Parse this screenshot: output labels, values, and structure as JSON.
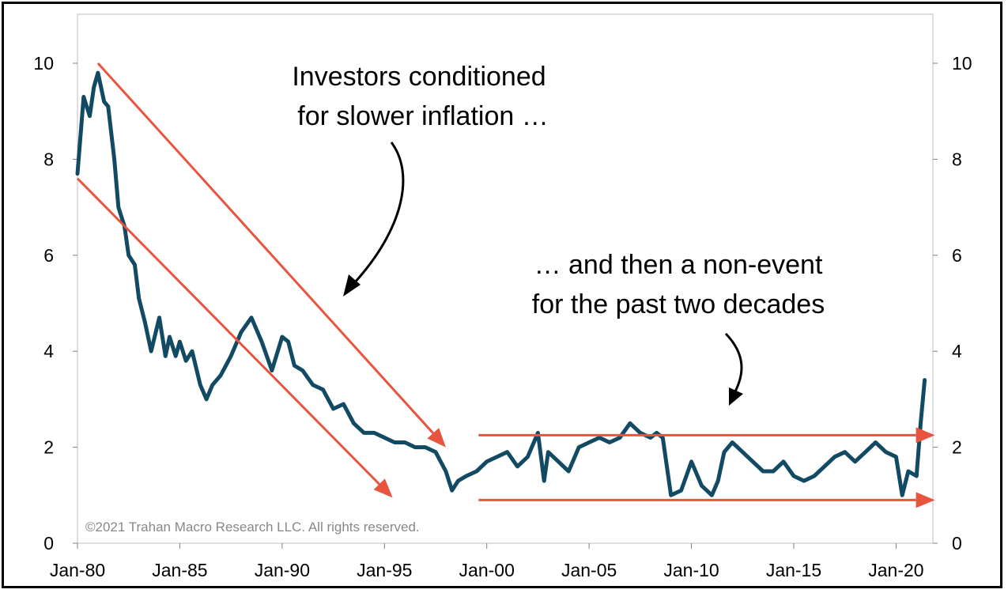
{
  "chart_data": {
    "type": "line",
    "title": "",
    "xlabel": "",
    "ylabel": "",
    "ylim": [
      0,
      10
    ],
    "y_ticks_left": [
      "0",
      "2",
      "4",
      "6",
      "8",
      "10"
    ],
    "y_ticks_right": [
      "0",
      "2",
      "4",
      "6",
      "8",
      "10"
    ],
    "x_ticks": [
      "Jan-80",
      "Jan-85",
      "Jan-90",
      "Jan-95",
      "Jan-00",
      "Jan-05",
      "Jan-10",
      "Jan-15",
      "Jan-20"
    ],
    "x_tick_years": [
      1980,
      1985,
      1990,
      1995,
      2000,
      2005,
      2010,
      2015,
      2020
    ],
    "xlim": [
      1980,
      2021.8
    ],
    "grid": false,
    "series": [
      {
        "color": "#124a63",
        "x": [
          1980.0,
          1980.3,
          1980.6,
          1980.8,
          1981.0,
          1981.3,
          1981.5,
          1981.8,
          1982.0,
          1982.3,
          1982.5,
          1982.8,
          1983.0,
          1983.3,
          1983.6,
          1984.0,
          1984.3,
          1984.5,
          1984.8,
          1985.0,
          1985.3,
          1985.6,
          1986.0,
          1986.3,
          1986.6,
          1987.0,
          1987.5,
          1988.0,
          1988.5,
          1989.0,
          1989.5,
          1990.0,
          1990.3,
          1990.6,
          1991.0,
          1991.5,
          1992.0,
          1992.5,
          1993.0,
          1993.5,
          1994.0,
          1994.5,
          1995.0,
          1995.5,
          1996.0,
          1996.5,
          1997.0,
          1997.5,
          1998.0,
          1998.3,
          1998.6,
          1999.0,
          1999.5,
          2000.0,
          2000.5,
          2001.0,
          2001.5,
          2002.0,
          2002.5,
          2002.8,
          2003.0,
          2003.5,
          2004.0,
          2004.5,
          2005.0,
          2005.5,
          2006.0,
          2006.5,
          2007.0,
          2007.5,
          2008.0,
          2008.3,
          2008.6,
          2009.0,
          2009.5,
          2010.0,
          2010.5,
          2011.0,
          2011.3,
          2011.6,
          2012.0,
          2012.5,
          2013.0,
          2013.5,
          2014.0,
          2014.5,
          2015.0,
          2015.5,
          2016.0,
          2016.5,
          2017.0,
          2017.5,
          2018.0,
          2018.5,
          2019.0,
          2019.5,
          2020.0,
          2020.3,
          2020.6,
          2021.0,
          2021.2,
          2021.4
        ],
        "values": [
          7.7,
          9.3,
          8.9,
          9.5,
          9.8,
          9.2,
          9.1,
          8.0,
          7.0,
          6.6,
          6.0,
          5.8,
          5.1,
          4.6,
          4.0,
          4.7,
          3.9,
          4.3,
          3.9,
          4.2,
          3.8,
          4.0,
          3.3,
          3.0,
          3.3,
          3.5,
          3.9,
          4.4,
          4.7,
          4.2,
          3.6,
          4.3,
          4.2,
          3.7,
          3.6,
          3.3,
          3.2,
          2.8,
          2.9,
          2.5,
          2.3,
          2.3,
          2.2,
          2.1,
          2.1,
          2.0,
          2.0,
          1.9,
          1.5,
          1.1,
          1.3,
          1.4,
          1.5,
          1.7,
          1.8,
          1.9,
          1.6,
          1.8,
          2.3,
          1.3,
          1.9,
          1.7,
          1.5,
          2.0,
          2.1,
          2.2,
          2.1,
          2.2,
          2.5,
          2.3,
          2.2,
          2.3,
          2.2,
          1.0,
          1.1,
          1.7,
          1.2,
          1.0,
          1.3,
          1.9,
          2.1,
          1.9,
          1.7,
          1.5,
          1.5,
          1.7,
          1.4,
          1.3,
          1.4,
          1.6,
          1.8,
          1.9,
          1.7,
          1.9,
          2.1,
          1.9,
          1.8,
          1.0,
          1.5,
          1.4,
          2.5,
          3.4
        ]
      }
    ],
    "arrows": [
      {
        "from": [
          1981.0,
          10.0
        ],
        "to": [
          1998.0,
          2.0
        ],
        "color": "#e8553f"
      },
      {
        "from": [
          1980.0,
          7.6
        ],
        "to": [
          1995.4,
          0.95
        ],
        "color": "#e8553f"
      },
      {
        "from": [
          1999.6,
          2.25
        ],
        "to": [
          2021.9,
          2.25
        ],
        "color": "#e8553f"
      },
      {
        "from": [
          1999.6,
          0.9
        ],
        "to": [
          2021.9,
          0.9
        ],
        "color": "#e8553f"
      }
    ],
    "annotations": [
      {
        "lines": [
          "Investors conditioned",
          "for slower inflation …"
        ]
      },
      {
        "lines": [
          "… and then a non-event",
          "for the past two decades"
        ]
      }
    ],
    "copyright": "©2021 Trahan Macro Research LLC. All rights reserved."
  }
}
